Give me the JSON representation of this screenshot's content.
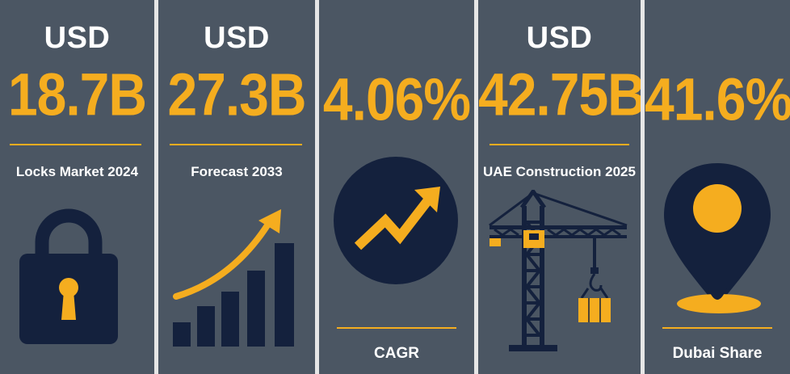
{
  "stats": [
    {
      "prefix": "USD",
      "value": "18.7B",
      "label": "Locks Market 2024",
      "icon": "padlock-icon"
    },
    {
      "prefix": "USD",
      "value": "27.3B",
      "label": "Forecast 2033",
      "icon": "growth-bar-chart-icon"
    },
    {
      "prefix": "",
      "value": "4.06%",
      "label": "CAGR",
      "icon": "trend-up-arrow-icon"
    },
    {
      "prefix": "USD",
      "value": "42.75B",
      "label": "UAE Construction 2025",
      "icon": "tower-crane-icon"
    },
    {
      "prefix": "",
      "value": "41.6%",
      "label": "Dubai Share",
      "icon": "map-pin-icon"
    }
  ],
  "colors": {
    "panel": "#4b5663",
    "accent": "#f5ad1f",
    "icon_dark": "#14213d",
    "text": "#ffffff",
    "gap": "#e6e6e6"
  }
}
